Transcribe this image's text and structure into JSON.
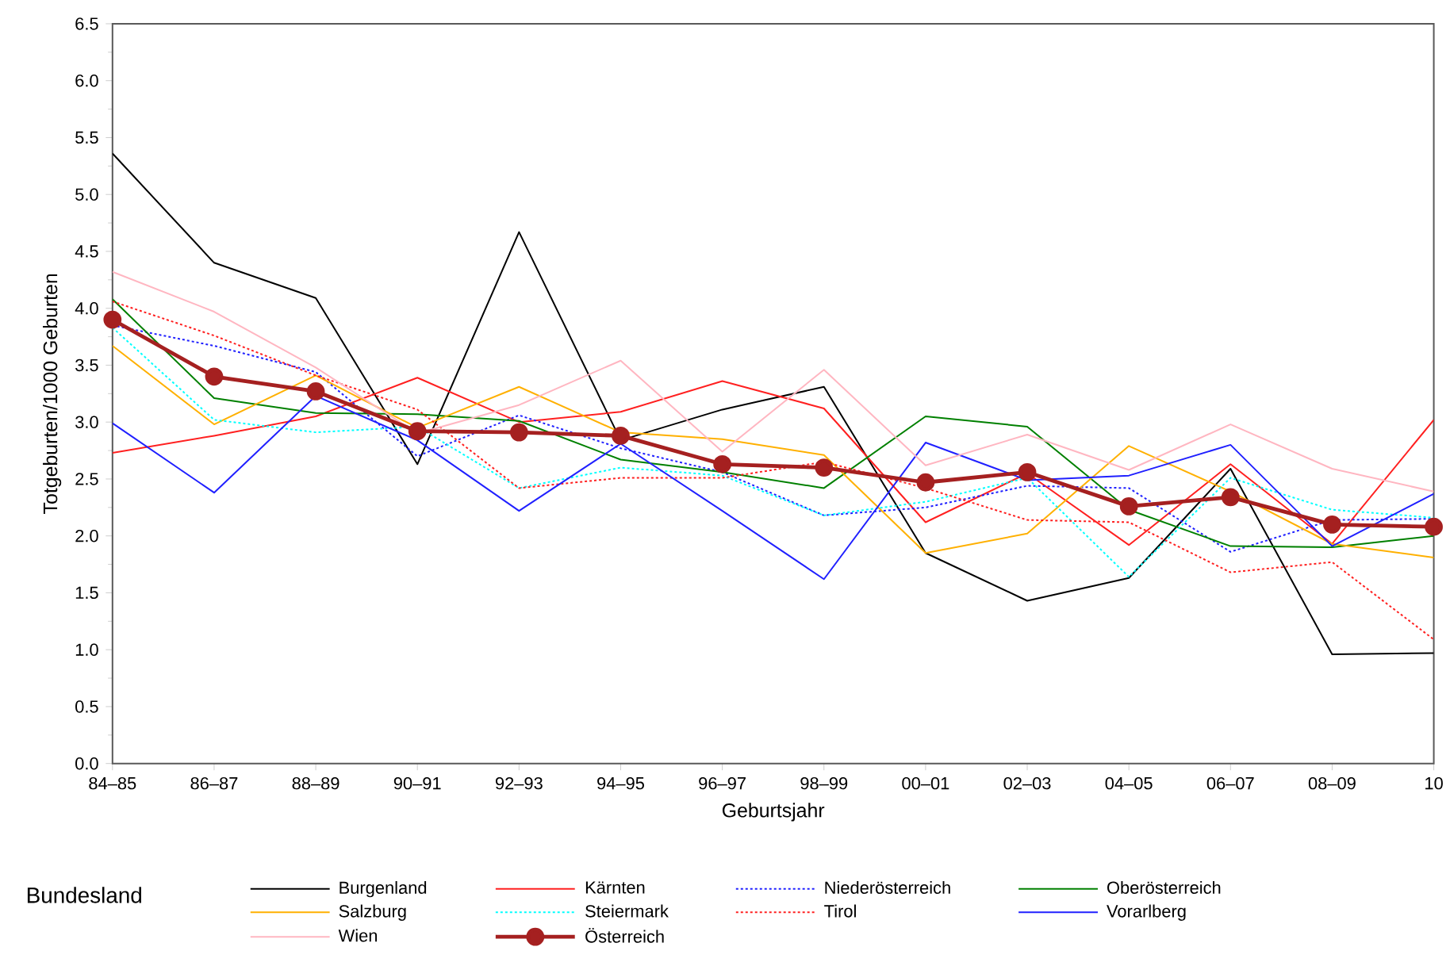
{
  "chart_data": {
    "type": "line",
    "xlabel": "Geburtsjahr",
    "ylabel": "Totgeburten/1000 Geburten",
    "legend_title": "Bundesland",
    "legend": "bottom",
    "grid": false,
    "categories": [
      "84–85",
      "86–87",
      "88–89",
      "90–91",
      "92–93",
      "94–95",
      "96–97",
      "98–99",
      "00–01",
      "02–03",
      "04–05",
      "06–07",
      "08–09",
      "10"
    ],
    "ylim": [
      0,
      6.5
    ],
    "yticks": [
      {
        "value": 0,
        "label": "0.0"
      },
      {
        "value": 0.5,
        "label": "0.5"
      },
      {
        "value": 1,
        "label": "1.0"
      },
      {
        "value": 1.5,
        "label": "1.5"
      },
      {
        "value": 2,
        "label": "2.0"
      },
      {
        "value": 2.5,
        "label": "2.5"
      },
      {
        "value": 3,
        "label": "3.0"
      },
      {
        "value": 3.5,
        "label": "3.5"
      },
      {
        "value": 4,
        "label": "4.0"
      },
      {
        "value": 4.5,
        "label": "4.5"
      },
      {
        "value": 5,
        "label": "5.0"
      },
      {
        "value": 5.5,
        "label": "5.5"
      },
      {
        "value": 6,
        "label": "6.0"
      },
      {
        "value": 6.5,
        "label": "6.5"
      }
    ],
    "series": [
      {
        "name": "Burgenland",
        "color": "#000000",
        "line_style": "solid",
        "values": [
          5.36,
          4.4,
          4.09,
          2.63,
          4.67,
          2.84,
          3.11,
          3.31,
          1.85,
          1.43,
          1.63,
          2.59,
          0.96,
          0.97
        ]
      },
      {
        "name": "Kärnten",
        "color": "#ff2020",
        "line_style": "solid",
        "values": [
          2.73,
          2.88,
          3.05,
          3.39,
          3.0,
          3.09,
          3.36,
          3.12,
          2.12,
          2.55,
          1.92,
          2.63,
          1.93,
          3.02
        ]
      },
      {
        "name": "Niederösterreich",
        "color": "#2020ff",
        "line_style": "dotted",
        "values": [
          3.85,
          3.67,
          3.44,
          2.7,
          3.06,
          2.77,
          2.56,
          2.18,
          2.25,
          2.44,
          2.42,
          1.86,
          2.14,
          2.15
        ]
      },
      {
        "name": "Oberösterreich",
        "color": "#008000",
        "line_style": "solid",
        "values": [
          4.08,
          3.21,
          3.08,
          3.07,
          3.01,
          2.67,
          2.56,
          2.42,
          3.05,
          2.96,
          2.23,
          1.91,
          1.9,
          2.0
        ]
      },
      {
        "name": "Salzburg",
        "color": "#ffb000",
        "line_style": "solid",
        "values": [
          3.67,
          2.98,
          3.41,
          2.95,
          3.31,
          2.91,
          2.85,
          2.71,
          1.85,
          2.02,
          2.79,
          2.39,
          1.93,
          1.81
        ]
      },
      {
        "name": "Steiermark",
        "color": "#00ffff",
        "line_style": "dotted",
        "values": [
          3.83,
          3.02,
          2.91,
          2.96,
          2.42,
          2.6,
          2.53,
          2.18,
          2.3,
          2.51,
          1.64,
          2.51,
          2.23,
          2.16
        ]
      },
      {
        "name": "Tirol",
        "color": "#ff2020",
        "line_style": "dotted",
        "values": [
          4.06,
          3.76,
          3.41,
          3.11,
          2.42,
          2.51,
          2.51,
          2.65,
          2.42,
          2.14,
          2.12,
          1.68,
          1.77,
          1.09
        ]
      },
      {
        "name": "Vorarlberg",
        "color": "#2020ff",
        "line_style": "solid",
        "values": [
          2.99,
          2.38,
          3.23,
          2.84,
          2.22,
          2.81,
          2.22,
          1.62,
          2.82,
          2.49,
          2.53,
          2.8,
          1.91,
          2.37
        ]
      },
      {
        "name": "Wien",
        "color": "#ffb6c1",
        "line_style": "solid",
        "values": [
          4.32,
          3.97,
          3.48,
          2.9,
          3.15,
          3.54,
          2.74,
          3.46,
          2.62,
          2.89,
          2.58,
          2.98,
          2.59,
          2.39
        ]
      },
      {
        "name": "Österreich",
        "color": "#a52020",
        "line_style": "solid",
        "marker": "circle",
        "values": [
          3.9,
          3.4,
          3.27,
          2.92,
          2.91,
          2.88,
          2.63,
          2.6,
          2.47,
          2.56,
          2.26,
          2.34,
          2.1,
          2.08
        ]
      }
    ]
  }
}
